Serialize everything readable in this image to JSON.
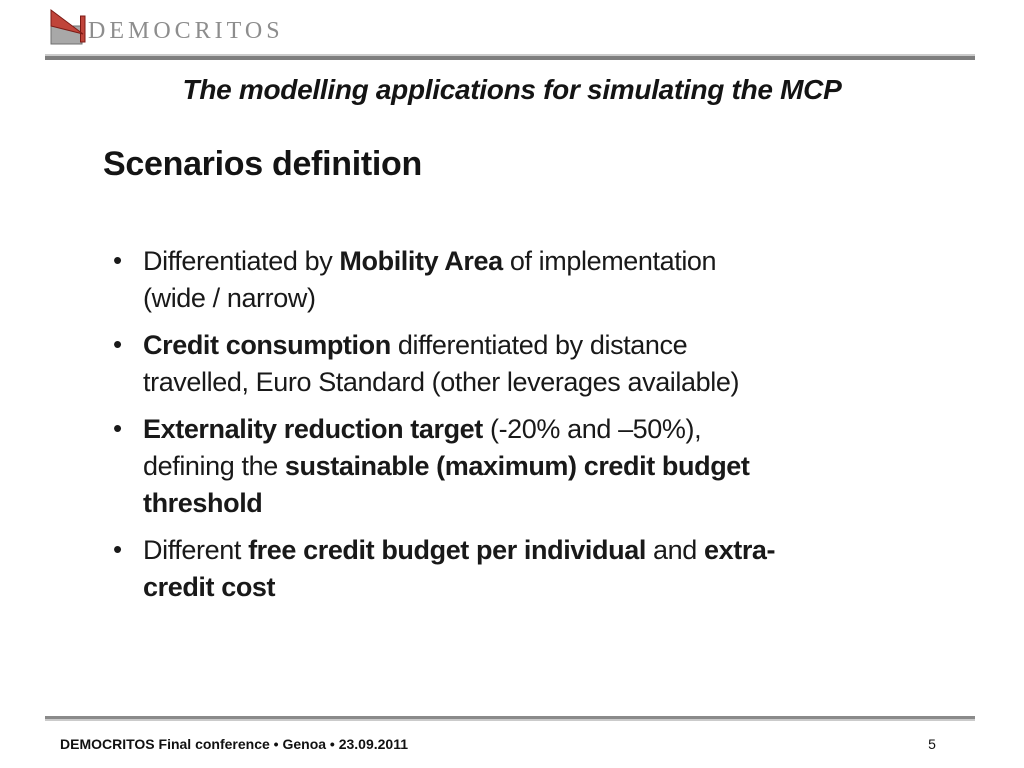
{
  "logo": {
    "text": "DEMOCRITOS",
    "mark_icon": "red-triangle-gray-base-logo"
  },
  "header": {
    "title": "The modelling applications for simulating the MCP"
  },
  "slide": {
    "heading": "Scenarios definition",
    "bullet_char": "•",
    "bullets": [
      {
        "segments": [
          {
            "text": "Differentiated by ",
            "bold": false
          },
          {
            "text": "Mobility Area",
            "bold": true
          },
          {
            "text": " of implementation\n(wide / narrow)",
            "bold": false
          }
        ]
      },
      {
        "segments": [
          {
            "text": "Credit consumption",
            "bold": true
          },
          {
            "text": " differentiated by distance\ntravelled, Euro Standard (other leverages available)",
            "bold": false
          }
        ]
      },
      {
        "segments": [
          {
            "text": "Externality reduction target",
            "bold": true
          },
          {
            "text": " (-20% and –50%),\ndefining the ",
            "bold": false
          },
          {
            "text": "sustainable (maximum) credit budget\nthreshold",
            "bold": true
          }
        ]
      },
      {
        "segments": [
          {
            "text": "Different ",
            "bold": false
          },
          {
            "text": "free credit budget per individual",
            "bold": true
          },
          {
            "text": " and ",
            "bold": false
          },
          {
            "text": "extra-\ncredit cost",
            "bold": true
          }
        ]
      }
    ]
  },
  "footer": {
    "left_text": "DEMOCRITOS Final conference • Genoa • 23.09.2011",
    "page_number": "5"
  },
  "colors": {
    "logo_red": "#c0443a",
    "logo_gray": "#a8a8a8",
    "rule_dark": "#7e7e7e",
    "rule_mid": "#8a8a8a",
    "rule_light": "#cbcbcb",
    "text": "#1a1a1a"
  }
}
